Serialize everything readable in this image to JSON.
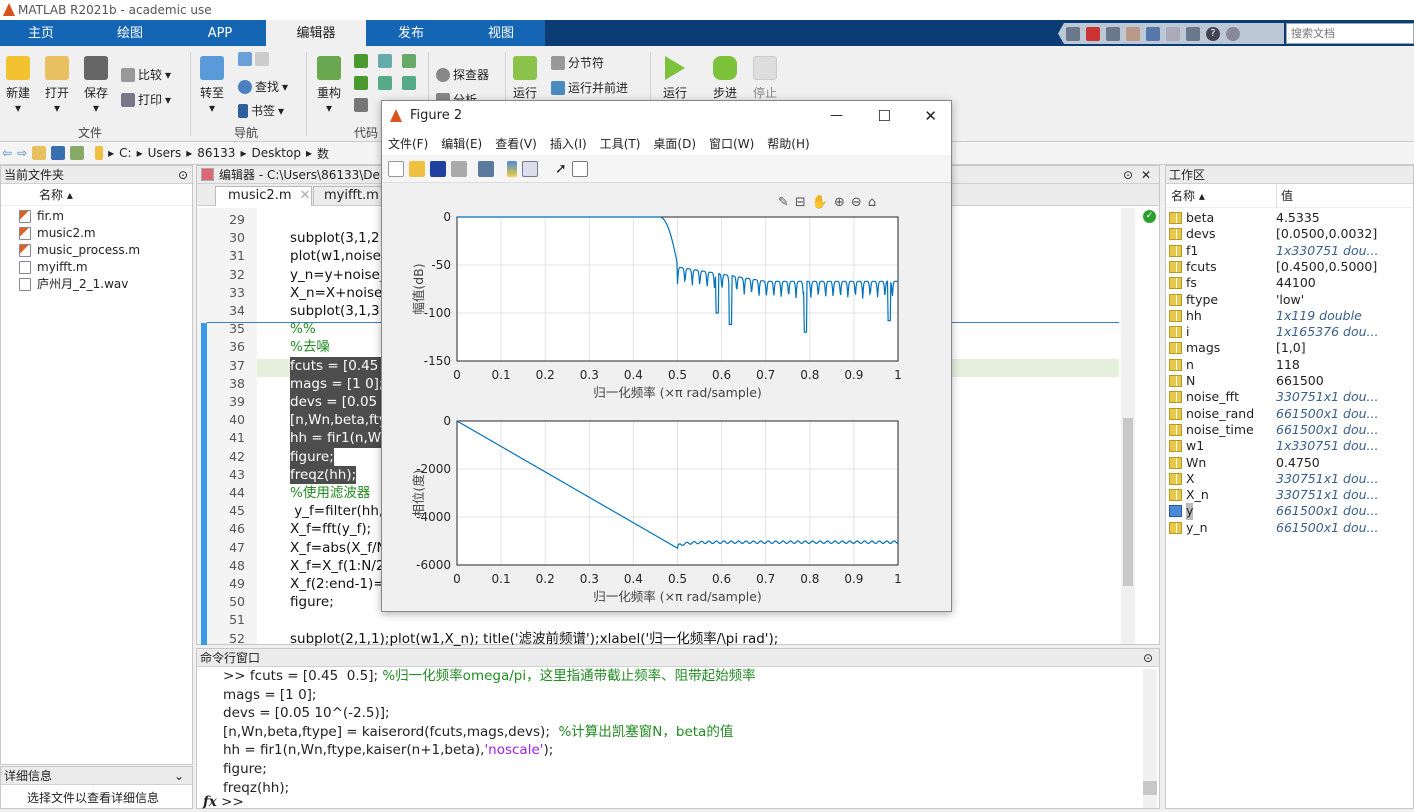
{
  "app": {
    "title": "MATLAB R2021b - academic use"
  },
  "ribbon_tabs": [
    {
      "label": "主页"
    },
    {
      "label": "绘图"
    },
    {
      "label": "APP"
    },
    {
      "label": "编辑器",
      "active": true
    },
    {
      "label": "发布"
    },
    {
      "label": "视图"
    }
  ],
  "search": {
    "placeholder": "搜索文档"
  },
  "ribbon": {
    "file": {
      "new": "新建",
      "open": "打开",
      "save": "保存",
      "compare": "比较",
      "print": "打印",
      "group": "文件"
    },
    "nav": {
      "goto": "转至",
      "find": "查找",
      "bookmark": "书签",
      "group": "导航"
    },
    "code": {
      "refactor": "重构",
      "group": "代码"
    },
    "analyze": {
      "profiler": "探查器",
      "analyze": "分析"
    },
    "section": {
      "run_section": "运行",
      "section_break": "分节符",
      "run_advance": "运行并前进"
    },
    "run": {
      "run": "运行",
      "step": "步进",
      "stop": "停止"
    }
  },
  "address": {
    "segments": [
      "C:",
      "Users",
      "86133",
      "Desktop",
      "数"
    ]
  },
  "current_folder": {
    "title": "当前文件夹",
    "column": "名称 ▴",
    "files": [
      {
        "name": "fir.m",
        "type": "m"
      },
      {
        "name": "music2.m",
        "type": "m"
      },
      {
        "name": "music_process.m",
        "type": "m"
      },
      {
        "name": "myifft.m",
        "type": "fn"
      },
      {
        "name": "庐州月_2_1.wav",
        "type": "wav"
      }
    ],
    "details_title": "详细信息",
    "details_text": "选择文件以查看详细信息"
  },
  "editor": {
    "title": "编辑器 - C:\\Users\\86133\\De",
    "tabs": [
      {
        "label": "music2.m",
        "active": true
      },
      {
        "label": "myifft.m"
      }
    ],
    "lines": [
      {
        "n": "29",
        "t": ""
      },
      {
        "n": "30",
        "t": "subplot(3,1,2);"
      },
      {
        "n": "31",
        "t": "plot(w1,noise_"
      },
      {
        "n": "32",
        "t": "y_n=y+noise_t"
      },
      {
        "n": "33",
        "t": "X_n=X+noise_"
      },
      {
        "n": "34",
        "t": "subplot(3,1,3);"
      },
      {
        "n": "35",
        "t": "%%",
        "c": "cmt"
      },
      {
        "n": "36",
        "t": "%去噪",
        "c": "cmt"
      },
      {
        "n": "37",
        "t": "fcuts = [0.45  0",
        "c": "sel"
      },
      {
        "n": "38",
        "t": "mags = [1 0];",
        "c": "sel"
      },
      {
        "n": "39",
        "t": "devs = [0.05 10",
        "c": "sel"
      },
      {
        "n": "40",
        "t": "[n,Wn,beta,fty",
        "c": "sel"
      },
      {
        "n": "41",
        "t": "hh = fir1(n,Wn",
        "c": "sel"
      },
      {
        "n": "42",
        "t": "figure;",
        "c": "sel"
      },
      {
        "n": "43",
        "t": "freqz(hh);",
        "c": "sel"
      },
      {
        "n": "44",
        "t": "%使用滤波器",
        "c": "cmt"
      },
      {
        "n": "45",
        "t": " y_f=filter(hh,V"
      },
      {
        "n": "46",
        "t": "X_f=fft(y_f);"
      },
      {
        "n": "47",
        "t": "X_f=abs(X_f/N"
      },
      {
        "n": "48",
        "t": "X_f=X_f(1:N/2"
      },
      {
        "n": "49",
        "t": "X_f(2:end-1)=2"
      },
      {
        "n": "50",
        "t": "figure;"
      },
      {
        "n": "51",
        "t": ""
      },
      {
        "n": "52",
        "t": "subplot(2,1,1);plot(w1,X_n); title('滤波前频谱');xlabel('归一化频率/\\pi rad');"
      }
    ]
  },
  "command_window": {
    "title": "命令行窗口",
    "prompt": ">>",
    "lines": [
      {
        "code": ">> fcuts = [0.45  0.5]; ",
        "comment": "%归一化频率omega/pi，这里指通带截止频率、阻带起始频率"
      },
      {
        "code": "mags = [1 0];"
      },
      {
        "code": "devs = [0.05 10^(-2.5)];"
      },
      {
        "code": "[n,Wn,beta,ftype] = kaiserord(fcuts,mags,devs);  ",
        "comment": "%计算出凯塞窗N，beta的值"
      },
      {
        "code": "hh = fir1(n,Wn,ftype,kaiser(n+1,beta),",
        "str": "'noscale'",
        "tail": ");"
      },
      {
        "code": "figure;"
      },
      {
        "code": "freqz(hh);"
      }
    ]
  },
  "workspace": {
    "title": "工作区",
    "col_name": "名称 ▴",
    "col_value": "值",
    "vars": [
      {
        "name": "beta",
        "value": "4.5335"
      },
      {
        "name": "devs",
        "value": "[0.0500,0.0032]"
      },
      {
        "name": "f1",
        "value": "1x330751 dou...",
        "italic": true
      },
      {
        "name": "fcuts",
        "value": "[0.4500,0.5000]"
      },
      {
        "name": "fs",
        "value": "44100"
      },
      {
        "name": "ftype",
        "value": "'low'"
      },
      {
        "name": "hh",
        "value": "1x119 double",
        "italic": true
      },
      {
        "name": "i",
        "value": "1x165376 dou...",
        "italic": true
      },
      {
        "name": "mags",
        "value": "[1,0]"
      },
      {
        "name": "n",
        "value": "118"
      },
      {
        "name": "N",
        "value": "661500"
      },
      {
        "name": "noise_fft",
        "value": "330751x1 dou...",
        "italic": true
      },
      {
        "name": "noise_rand",
        "value": "661500x1 dou...",
        "italic": true
      },
      {
        "name": "noise_time",
        "value": "661500x1 dou...",
        "italic": true
      },
      {
        "name": "w1",
        "value": "1x330751 dou...",
        "italic": true
      },
      {
        "name": "Wn",
        "value": "0.4750"
      },
      {
        "name": "X",
        "value": "330751x1 dou...",
        "italic": true
      },
      {
        "name": "X_n",
        "value": "330751x1 dou...",
        "italic": true
      },
      {
        "name": "y",
        "value": "661500x1 dou...",
        "italic": true,
        "selected": true
      },
      {
        "name": "y_n",
        "value": "661500x1 dou...",
        "italic": true
      }
    ]
  },
  "figure": {
    "title": "Figure 2",
    "menu": [
      "文件(F)",
      "编辑(E)",
      "查看(V)",
      "插入(I)",
      "工具(T)",
      "桌面(D)",
      "窗口(W)",
      "帮助(H)"
    ],
    "line_color": "#0072bd",
    "magnitude": {
      "ylabel": "幅值(dB)",
      "xlabel": "归一化频率  (×π rad/sample)",
      "xlim": [
        0,
        1
      ],
      "ylim": [
        -150,
        0
      ],
      "xticks": [
        "0",
        "0.1",
        "0.2",
        "0.3",
        "0.4",
        "0.5",
        "0.6",
        "0.7",
        "0.8",
        "0.9",
        "1"
      ],
      "yticks": [
        "0",
        "-50",
        "-100",
        "-150"
      ],
      "grid": true,
      "passband_end": 0.46,
      "transition_end": [
        0.5,
        -50
      ],
      "stopband_level": [
        -60,
        -75
      ],
      "notches": [
        [
          0.59,
          -100
        ],
        [
          0.62,
          -112
        ],
        [
          0.79,
          -120
        ],
        [
          0.98,
          -108
        ]
      ]
    },
    "phase": {
      "ylabel": "相位(度)",
      "xlabel": "归一化频率  (×π rad/sample)",
      "xlim": [
        0,
        1
      ],
      "ylim": [
        -6000,
        0
      ],
      "xticks": [
        "0",
        "0.1",
        "0.2",
        "0.3",
        "0.4",
        "0.5",
        "0.6",
        "0.7",
        "0.8",
        "0.9",
        "1"
      ],
      "yticks": [
        "0",
        "-2000",
        "-4000",
        "-6000"
      ],
      "grid": true,
      "points": [
        [
          0,
          0
        ],
        [
          0.5,
          -5300
        ],
        [
          1,
          -5050
        ]
      ]
    }
  }
}
